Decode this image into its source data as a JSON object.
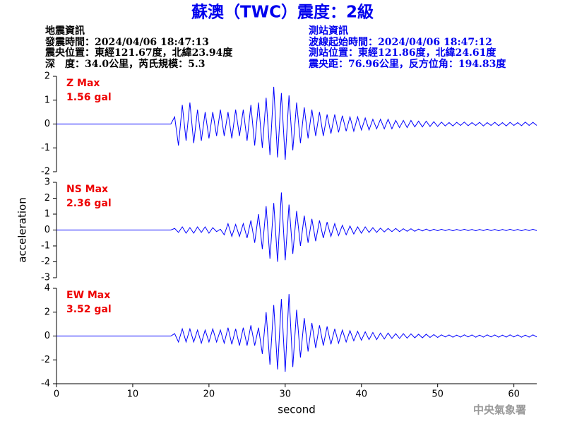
{
  "header": {
    "title": "蘇澳（TWC）震度：2級",
    "left": [
      "地震資訊",
      "發震時間：2024/04/06 18:47:13",
      "震央位置：東經121.67度，北緯23.94度",
      "深　度：34.0公里，芮氏規模：5.3"
    ],
    "right": [
      "測站資訊",
      "波線起始時間：2024/04/06 18:47:12",
      "測站位置：東經121.86度，北緯24.61度",
      "震央距：76.96公里，反方位角：194.83度"
    ],
    "footer": "中央氣象署"
  },
  "chart_data": [
    {
      "type": "line",
      "annotations": [
        "Z Max",
        "1.56 gal"
      ],
      "color": "#0000ff",
      "xlim": [
        0,
        63
      ],
      "ylim": [
        -2,
        2
      ],
      "yticks": [
        -2,
        -1,
        0,
        1,
        2
      ],
      "x": [
        0,
        15,
        15.5,
        16,
        16.5,
        17,
        17.5,
        18,
        18.5,
        19,
        19.5,
        20,
        20.5,
        21,
        21.5,
        22,
        22.5,
        23,
        23.5,
        24,
        24.5,
        25,
        25.5,
        26,
        26.5,
        27,
        27.5,
        28,
        28.5,
        29,
        29.5,
        30,
        30.5,
        31,
        31.5,
        32,
        32.5,
        33,
        33.5,
        34,
        34.5,
        35,
        35.5,
        36,
        36.5,
        37,
        37.5,
        38,
        38.5,
        39,
        39.5,
        40,
        40.5,
        41,
        41.5,
        42,
        42.5,
        43,
        43.5,
        44,
        44.5,
        45,
        45.5,
        46,
        46.5,
        47,
        47.5,
        48,
        48.5,
        49,
        49.5,
        50,
        50.5,
        51,
        51.5,
        52,
        52.5,
        53,
        53.5,
        54,
        54.5,
        55,
        55.5,
        56,
        56.5,
        57,
        57.5,
        58,
        58.5,
        59,
        59.5,
        60,
        60.5,
        61,
        61.5,
        62,
        62.5,
        63
      ],
      "values": [
        0,
        0,
        0.3,
        -0.9,
        0.8,
        -0.7,
        0.9,
        -0.8,
        0.6,
        -0.7,
        0.5,
        -0.6,
        0.5,
        -0.5,
        0.6,
        -0.5,
        0.5,
        -0.6,
        0.6,
        -0.5,
        0.6,
        -0.7,
        0.8,
        -0.9,
        0.9,
        -1.0,
        1.1,
        -1.3,
        1.56,
        -1.4,
        1.3,
        -1.5,
        1.2,
        -1.1,
        0.9,
        -0.8,
        0.7,
        -0.6,
        0.6,
        -0.5,
        0.5,
        -0.5,
        0.4,
        -0.4,
        0.4,
        -0.35,
        0.35,
        -0.3,
        0.3,
        -0.3,
        0.3,
        -0.25,
        0.25,
        -0.25,
        0.2,
        -0.2,
        0.2,
        -0.2,
        0.2,
        -0.2,
        0.15,
        -0.15,
        0.15,
        -0.15,
        0.15,
        -0.12,
        0.12,
        -0.12,
        0.12,
        -0.1,
        0.1,
        -0.1,
        0.08,
        -0.08,
        0.06,
        -0.08,
        0.07,
        -0.06,
        0.08,
        -0.07,
        0.06,
        -0.06,
        0.07,
        -0.08,
        0.06,
        -0.06,
        0.07,
        -0.07,
        0.06,
        -0.08,
        0.07,
        -0.06,
        0.06,
        -0.07,
        0.08,
        -0.06,
        0.07,
        -0.06
      ]
    },
    {
      "type": "line",
      "annotations": [
        "NS Max",
        "2.36 gal"
      ],
      "color": "#0000ff",
      "ylabel": "acceleration",
      "xlim": [
        0,
        63
      ],
      "ylim": [
        -3,
        3
      ],
      "yticks": [
        -3,
        -2,
        -1,
        0,
        1,
        2,
        3
      ],
      "x": [
        0,
        15,
        15.5,
        16,
        16.5,
        17,
        17.5,
        18,
        18.5,
        19,
        19.5,
        20,
        20.5,
        21,
        21.5,
        22,
        22.5,
        23,
        23.5,
        24,
        24.5,
        25,
        25.5,
        26,
        26.5,
        27,
        27.5,
        28,
        28.5,
        29,
        29.5,
        30,
        30.5,
        31,
        31.5,
        32,
        32.5,
        33,
        33.5,
        34,
        34.5,
        35,
        35.5,
        36,
        36.5,
        37,
        37.5,
        38,
        38.5,
        39,
        39.5,
        40,
        40.5,
        41,
        41.5,
        42,
        42.5,
        43,
        43.5,
        44,
        44.5,
        45,
        45.5,
        46,
        46.5,
        47,
        47.5,
        48,
        48.5,
        49,
        49.5,
        50,
        50.5,
        51,
        51.5,
        52,
        52.5,
        53,
        53.5,
        54,
        54.5,
        55,
        55.5,
        56,
        56.5,
        57,
        57.5,
        58,
        58.5,
        59,
        59.5,
        60,
        60.5,
        61,
        61.5,
        62,
        62.5,
        63
      ],
      "values": [
        0,
        0,
        0.1,
        -0.15,
        0.2,
        -0.2,
        0.15,
        -0.2,
        0.2,
        -0.15,
        0.2,
        -0.2,
        0.15,
        -0.1,
        0.05,
        -0.3,
        0.4,
        -0.4,
        0.35,
        -0.4,
        0.4,
        -0.5,
        0.6,
        -0.8,
        1.0,
        -1.2,
        1.5,
        -1.8,
        1.7,
        -2.0,
        2.36,
        -1.9,
        1.6,
        -1.5,
        1.2,
        -1.0,
        0.9,
        -0.8,
        0.7,
        -0.7,
        0.6,
        -0.5,
        0.5,
        -0.4,
        0.4,
        -0.35,
        0.3,
        -0.3,
        0.25,
        -0.25,
        0.2,
        -0.2,
        0.2,
        -0.15,
        0.15,
        -0.15,
        0.12,
        -0.12,
        0.1,
        -0.1,
        0.1,
        -0.1,
        0.08,
        -0.08,
        0.08,
        -0.08,
        0.06,
        -0.06,
        0.06,
        -0.06,
        0.05,
        -0.05,
        0.05,
        -0.04,
        0.04,
        -0.05,
        0.04,
        -0.04,
        0.05,
        -0.04,
        0.04,
        -0.05,
        0.04,
        -0.04,
        0.05,
        -0.04,
        0.04,
        -0.05,
        0.04,
        -0.04,
        0.05,
        -0.04,
        0.04,
        -0.05,
        0.04,
        -0.04,
        0.05,
        -0.04
      ]
    },
    {
      "type": "line",
      "annotations": [
        "EW Max",
        "3.52 gal"
      ],
      "color": "#0000ff",
      "xlabel": "second",
      "xlim": [
        0,
        63
      ],
      "xticks": [
        0,
        10,
        20,
        30,
        40,
        50,
        60
      ],
      "ylim": [
        -4,
        4
      ],
      "yticks": [
        -4,
        -2,
        0,
        2,
        4
      ],
      "x": [
        0,
        15,
        15.5,
        16,
        16.5,
        17,
        17.5,
        18,
        18.5,
        19,
        19.5,
        20,
        20.5,
        21,
        21.5,
        22,
        22.5,
        23,
        23.5,
        24,
        24.5,
        25,
        25.5,
        26,
        26.5,
        27,
        27.5,
        28,
        28.5,
        29,
        29.5,
        30,
        30.5,
        31,
        31.5,
        32,
        32.5,
        33,
        33.5,
        34,
        34.5,
        35,
        35.5,
        36,
        36.5,
        37,
        37.5,
        38,
        38.5,
        39,
        39.5,
        40,
        40.5,
        41,
        41.5,
        42,
        42.5,
        43,
        43.5,
        44,
        44.5,
        45,
        45.5,
        46,
        46.5,
        47,
        47.5,
        48,
        48.5,
        49,
        49.5,
        50,
        50.5,
        51,
        51.5,
        52,
        52.5,
        53,
        53.5,
        54,
        54.5,
        55,
        55.5,
        56,
        56.5,
        57,
        57.5,
        58,
        58.5,
        59,
        59.5,
        60,
        60.5,
        61,
        61.5,
        62,
        62.5,
        63
      ],
      "values": [
        0,
        0,
        0.2,
        -0.5,
        0.6,
        -0.5,
        0.6,
        -0.5,
        0.5,
        -0.6,
        0.5,
        -0.5,
        0.6,
        -0.5,
        0.5,
        -0.6,
        0.7,
        -0.7,
        0.6,
        -0.8,
        0.7,
        -0.8,
        0.9,
        -0.8,
        0.7,
        -1.5,
        2.0,
        -2.4,
        2.6,
        -2.8,
        3.1,
        -3.0,
        3.52,
        -2.6,
        2.2,
        -1.8,
        1.5,
        -1.3,
        1.1,
        -1.0,
        0.9,
        -0.8,
        0.8,
        -0.7,
        0.6,
        -0.6,
        0.5,
        -0.5,
        0.45,
        -0.4,
        0.4,
        -0.35,
        0.35,
        -0.3,
        0.3,
        -0.3,
        0.25,
        -0.25,
        0.25,
        -0.2,
        0.2,
        -0.2,
        0.2,
        -0.18,
        0.18,
        -0.15,
        0.15,
        -0.15,
        0.15,
        -0.12,
        0.12,
        -0.12,
        0.1,
        -0.08,
        0.09,
        -0.1,
        0.08,
        -0.09,
        0.1,
        -0.08,
        0.09,
        -0.1,
        0.08,
        -0.09,
        0.1,
        -0.08,
        0.09,
        -0.1,
        0.08,
        -0.09,
        0.1,
        -0.08,
        0.09,
        -0.1,
        0.08,
        -0.09,
        0.1,
        -0.08
      ]
    }
  ]
}
